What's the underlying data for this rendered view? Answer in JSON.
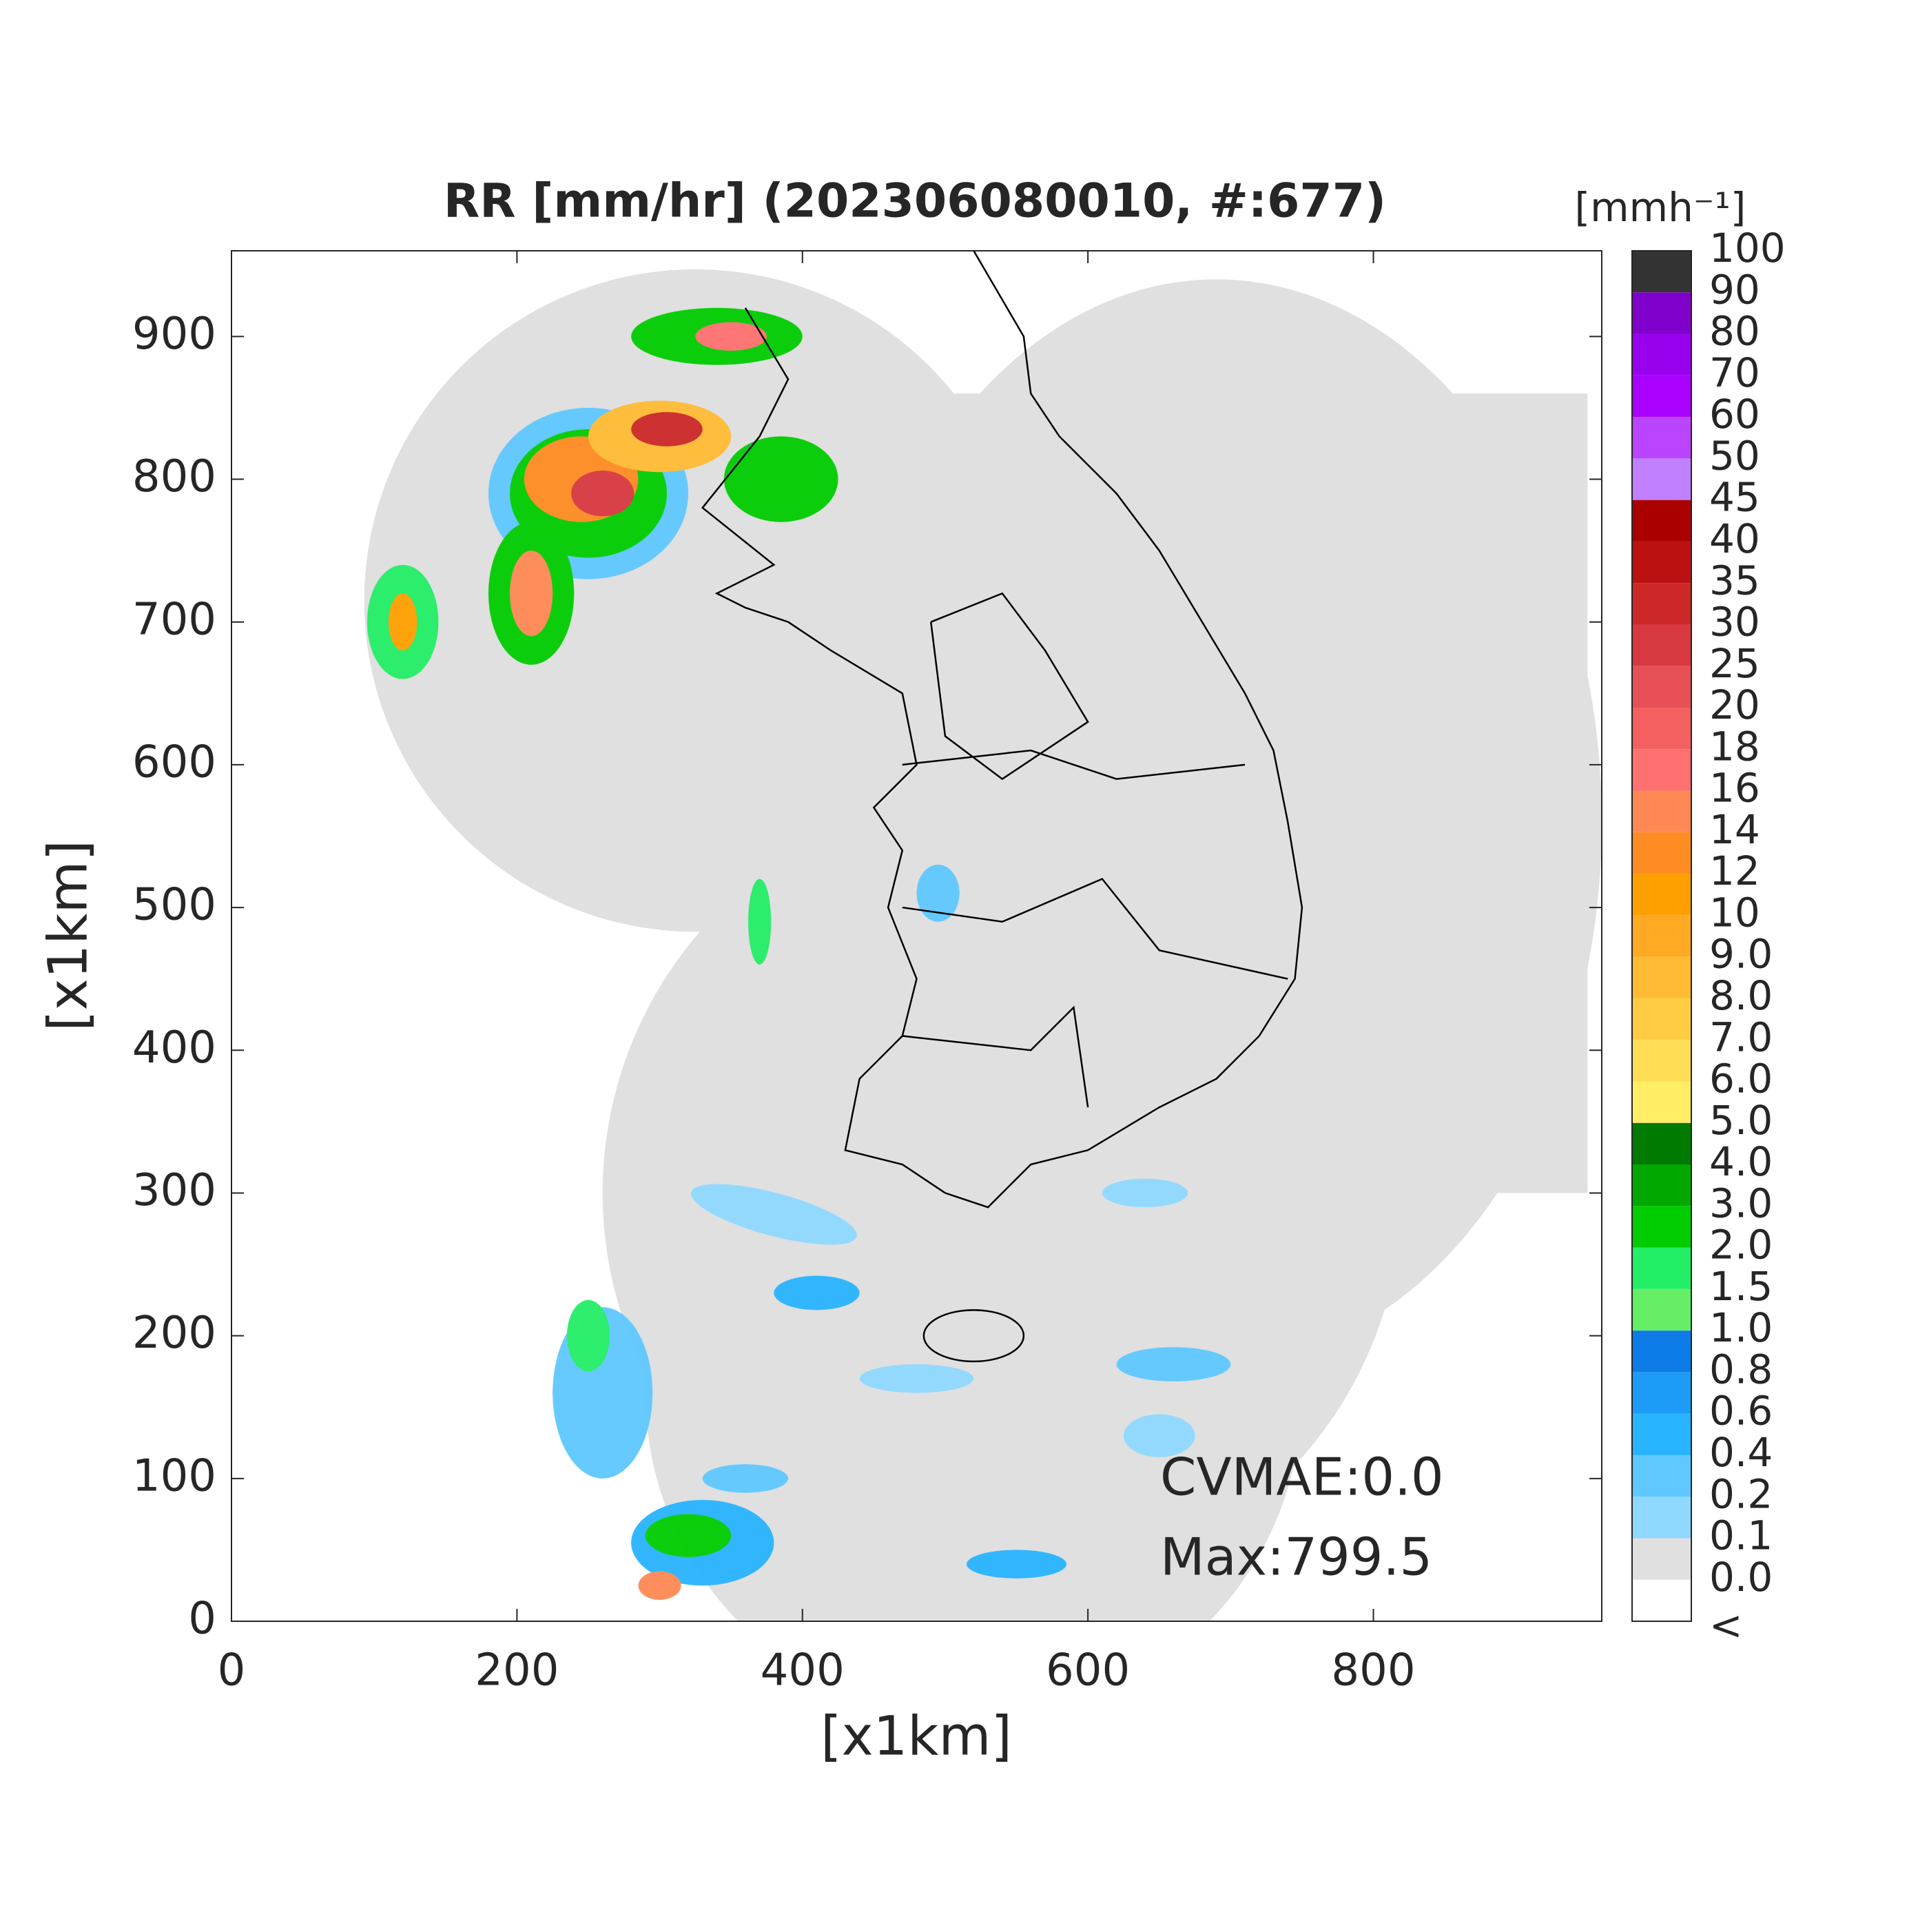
{
  "chart_data": {
    "type": "map",
    "title": "RR [mm/hr] (202306080010, #:677)",
    "x_label": "[x1km]",
    "y_label": "[x1km]",
    "xlim": [
      0,
      960
    ],
    "ylim": [
      0,
      960
    ],
    "xticks": [
      0,
      200,
      400,
      600,
      800
    ],
    "yticks": [
      0,
      100,
      200,
      300,
      400,
      500,
      600,
      700,
      800,
      900
    ],
    "annotations": [
      "CVMAE:0.0",
      "Max:799.5"
    ],
    "colorbar": {
      "label": "[mmh⁻¹]",
      "below_label": "<",
      "levels": [
        {
          "value": 0,
          "label": "0.0"
        },
        0.1,
        0.2,
        0.4,
        0.6,
        0.8,
        {
          "value": 1,
          "label": "1.0"
        },
        1.5,
        {
          "value": 2,
          "label": "2.0"
        },
        {
          "value": 3,
          "label": "3.0"
        },
        {
          "value": 4,
          "label": "4.0"
        },
        {
          "value": 5,
          "label": "5.0"
        },
        {
          "value": 6,
          "label": "6.0"
        },
        {
          "value": 7,
          "label": "7.0"
        },
        {
          "value": 8,
          "label": "8.0"
        },
        {
          "value": 9,
          "label": "9.0"
        },
        10,
        12,
        14,
        16,
        18,
        20,
        25,
        30,
        35,
        40,
        45,
        50,
        60,
        70,
        80,
        90,
        100
      ],
      "colors": [
        "#ffffff",
        "#e0e0e0",
        "#8fd8ff",
        "#5ec8ff",
        "#28b4ff",
        "#1c9cf6",
        "#0d7be8",
        "#66ee66",
        "#22ee66",
        "#00cc00",
        "#00a800",
        "#007a00",
        "#ffee66",
        "#ffdd55",
        "#ffcc44",
        "#ffbb33",
        "#ffaa22",
        "#ffa000",
        "#ff8c22",
        "#ff8855",
        "#ff7070",
        "#f46060",
        "#e85058",
        "#d83840",
        "#cc2828",
        "#bb1111",
        "#aa0000",
        "#c080ff",
        "#bb44ff",
        "#aa00ff",
        "#9900ee",
        "#8000cc",
        "#333333"
      ]
    }
  }
}
